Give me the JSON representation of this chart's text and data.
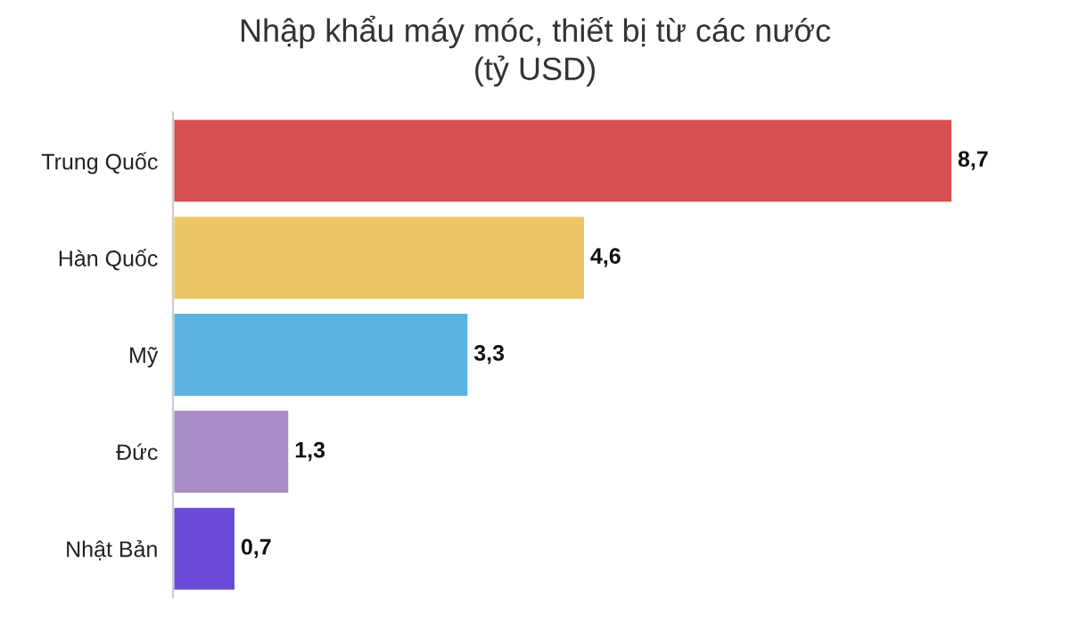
{
  "chart_data": {
    "type": "bar",
    "orientation": "horizontal",
    "title": "Nhập khẩu máy móc, thiết bị từ các nước\n(tỷ USD)",
    "categories": [
      "Trung Quốc",
      "Hàn Quốc",
      "Mỹ",
      "Đức",
      "Nhật Bản"
    ],
    "values": [
      8.7,
      4.6,
      3.3,
      1.3,
      0.7
    ],
    "colors": [
      "#d64e50",
      "#ebc665",
      "#5ab3e0",
      "#a98bc5",
      "#6a4bd6"
    ],
    "value_labels": [
      "8,7",
      "4,6",
      "3,3",
      "1,3",
      "0,7"
    ],
    "grid": false,
    "legend": false
  }
}
